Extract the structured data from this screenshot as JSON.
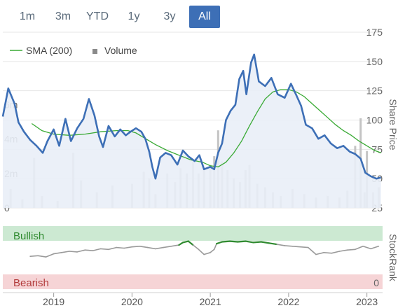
{
  "range_tabs": [
    {
      "label": "1m",
      "active": false
    },
    {
      "label": "3m",
      "active": false
    },
    {
      "label": "YTD",
      "active": false
    },
    {
      "label": "1y",
      "active": false
    },
    {
      "label": "3y",
      "active": false
    },
    {
      "label": "All",
      "active": true
    }
  ],
  "colors": {
    "price": "#3d6fb6",
    "price_fill": "#e9eef7",
    "sma": "#3aaa35",
    "volume": "#c4c4c4",
    "bullish_band": "#cce9d2",
    "bearish_band": "#f6d4d6",
    "rank_line": "#9a9a9a",
    "rank_bullish": "#2f8a2f",
    "accent": "#3d6fb6"
  },
  "chart_data": [
    {
      "type": "line",
      "legend": [
        {
          "name": "SMA (200)",
          "icon": "line"
        },
        {
          "name": "Volume",
          "icon": "square"
        }
      ],
      "ylabel": "Share Price",
      "price_axis": {
        "range": [
          25,
          175
        ],
        "ticks": [
          "175",
          "150",
          "125",
          "100",
          "75",
          "50",
          "25"
        ]
      },
      "volume_axis": {
        "range": [
          0,
          8000000
        ],
        "ticks": [
          "6m",
          "4m",
          "2m",
          "0"
        ]
      },
      "x_ticks": [
        "2019",
        "2020",
        "2021",
        "2022",
        "2023"
      ],
      "x_range": [
        2018.35,
        2023.2
      ],
      "series": [
        {
          "name": "Share Price",
          "points": [
            [
              2018.35,
              103
            ],
            [
              2018.42,
              127
            ],
            [
              2018.5,
              114
            ],
            [
              2018.55,
              98
            ],
            [
              2018.62,
              90
            ],
            [
              2018.7,
              83
            ],
            [
              2018.78,
              78
            ],
            [
              2018.86,
              72
            ],
            [
              2018.92,
              82
            ],
            [
              2019.0,
              92
            ],
            [
              2019.07,
              78
            ],
            [
              2019.15,
              101
            ],
            [
              2019.22,
              82
            ],
            [
              2019.3,
              93
            ],
            [
              2019.38,
              101
            ],
            [
              2019.45,
              118
            ],
            [
              2019.52,
              104
            ],
            [
              2019.58,
              86
            ],
            [
              2019.63,
              77
            ],
            [
              2019.7,
              95
            ],
            [
              2019.78,
              86
            ],
            [
              2019.85,
              92
            ],
            [
              2019.92,
              87
            ],
            [
              2019.98,
              90
            ],
            [
              2020.05,
              93
            ],
            [
              2020.12,
              90
            ],
            [
              2020.17,
              84
            ],
            [
              2020.22,
              73
            ],
            [
              2020.26,
              60
            ],
            [
              2020.3,
              50
            ],
            [
              2020.36,
              68
            ],
            [
              2020.43,
              72
            ],
            [
              2020.5,
              70
            ],
            [
              2020.58,
              62
            ],
            [
              2020.65,
              74
            ],
            [
              2020.72,
              69
            ],
            [
              2020.8,
              65
            ],
            [
              2020.86,
              70
            ],
            [
              2020.92,
              58
            ],
            [
              2021.0,
              60
            ],
            [
              2021.05,
              58
            ],
            [
              2021.1,
              72
            ],
            [
              2021.15,
              80
            ],
            [
              2021.2,
              100
            ],
            [
              2021.26,
              108
            ],
            [
              2021.32,
              113
            ],
            [
              2021.37,
              135
            ],
            [
              2021.42,
              142
            ],
            [
              2021.46,
              122
            ],
            [
              2021.52,
              149
            ],
            [
              2021.56,
              156
            ],
            [
              2021.62,
              133
            ],
            [
              2021.7,
              129
            ],
            [
              2021.78,
              136
            ],
            [
              2021.86,
              122
            ],
            [
              2021.95,
              119
            ],
            [
              2022.03,
              131
            ],
            [
              2022.1,
              121
            ],
            [
              2022.16,
              112
            ],
            [
              2022.22,
              96
            ],
            [
              2022.3,
              93
            ],
            [
              2022.38,
              84
            ],
            [
              2022.46,
              87
            ],
            [
              2022.54,
              80
            ],
            [
              2022.62,
              76
            ],
            [
              2022.7,
              78
            ],
            [
              2022.78,
              73
            ],
            [
              2022.85,
              71
            ],
            [
              2022.92,
              67
            ],
            [
              2022.98,
              55
            ],
            [
              2023.05,
              52
            ],
            [
              2023.12,
              50
            ],
            [
              2023.18,
              51
            ]
          ]
        },
        {
          "name": "SMA (200)",
          "points": [
            [
              2018.72,
              97
            ],
            [
              2018.85,
              91
            ],
            [
              2019.0,
              88
            ],
            [
              2019.2,
              87
            ],
            [
              2019.4,
              88
            ],
            [
              2019.6,
              90
            ],
            [
              2019.8,
              91
            ],
            [
              2019.95,
              91
            ],
            [
              2020.05,
              89
            ],
            [
              2020.15,
              85
            ],
            [
              2020.3,
              79
            ],
            [
              2020.45,
              74
            ],
            [
              2020.6,
              70
            ],
            [
              2020.75,
              66
            ],
            [
              2020.9,
              64
            ],
            [
              2021.0,
              61
            ],
            [
              2021.1,
              60
            ],
            [
              2021.2,
              64
            ],
            [
              2021.3,
              72
            ],
            [
              2021.4,
              82
            ],
            [
              2021.5,
              95
            ],
            [
              2021.6,
              107
            ],
            [
              2021.7,
              118
            ],
            [
              2021.8,
              124
            ],
            [
              2021.9,
              126
            ],
            [
              2022.0,
              126
            ],
            [
              2022.1,
              124
            ],
            [
              2022.2,
              120
            ],
            [
              2022.3,
              114
            ],
            [
              2022.4,
              108
            ],
            [
              2022.5,
              102
            ],
            [
              2022.6,
              96
            ],
            [
              2022.7,
              91
            ],
            [
              2022.8,
              87
            ],
            [
              2022.9,
              82
            ],
            [
              2023.0,
              78
            ],
            [
              2023.1,
              74
            ],
            [
              2023.18,
              72
            ]
          ]
        },
        {
          "name": "Volume",
          "points": [
            [
              2018.45,
              1100000
            ],
            [
              2018.6,
              500000
            ],
            [
              2018.75,
              2900000
            ],
            [
              2018.85,
              700000
            ],
            [
              2019.05,
              400000
            ],
            [
              2019.25,
              3200000
            ],
            [
              2019.35,
              1600000
            ],
            [
              2019.55,
              900000
            ],
            [
              2019.75,
              1300000
            ],
            [
              2020.0,
              1400000
            ],
            [
              2020.15,
              2100000
            ],
            [
              2020.22,
              1700000
            ],
            [
              2020.3,
              800000
            ],
            [
              2020.45,
              2000000
            ],
            [
              2020.55,
              1500000
            ],
            [
              2020.62,
              2300000
            ],
            [
              2020.7,
              2000000
            ],
            [
              2020.78,
              2700000
            ],
            [
              2020.85,
              2000000
            ],
            [
              2020.92,
              2200000
            ],
            [
              2021.0,
              2500000
            ],
            [
              2021.05,
              3000000
            ],
            [
              2021.1,
              4500000
            ],
            [
              2021.15,
              2700000
            ],
            [
              2021.22,
              2200000
            ],
            [
              2021.3,
              1700000
            ],
            [
              2021.38,
              1500000
            ],
            [
              2021.45,
              2200000
            ],
            [
              2021.5,
              2500000
            ],
            [
              2021.6,
              1400000
            ],
            [
              2021.7,
              1200000
            ],
            [
              2021.8,
              900000
            ],
            [
              2021.9,
              700000
            ],
            [
              2022.05,
              1100000
            ],
            [
              2022.2,
              800000
            ],
            [
              2022.35,
              600000
            ],
            [
              2022.5,
              700000
            ],
            [
              2022.65,
              600000
            ],
            [
              2022.75,
              1000000
            ],
            [
              2022.85,
              3600000
            ],
            [
              2022.92,
              5200000
            ],
            [
              2022.97,
              900000
            ],
            [
              2023.0,
              3300000
            ],
            [
              2023.08,
              900000
            ],
            [
              2023.15,
              1200000
            ]
          ]
        }
      ]
    },
    {
      "type": "line",
      "ylabel": "StockRank",
      "bands": [
        {
          "label": "Bullish",
          "range": [
            70,
            100
          ]
        },
        {
          "label": "Bearish",
          "range": [
            0,
            30
          ]
        }
      ],
      "y_ticks": [
        "0"
      ],
      "series": [
        {
          "name": "StockRank",
          "points": [
            [
              2018.7,
              52
            ],
            [
              2018.8,
              53
            ],
            [
              2018.9,
              51
            ],
            [
              2019.0,
              56
            ],
            [
              2019.1,
              58
            ],
            [
              2019.2,
              60
            ],
            [
              2019.3,
              59
            ],
            [
              2019.4,
              62
            ],
            [
              2019.5,
              61
            ],
            [
              2019.6,
              64
            ],
            [
              2019.7,
              63
            ],
            [
              2019.8,
              66
            ],
            [
              2019.9,
              65
            ],
            [
              2020.0,
              67
            ],
            [
              2020.1,
              68
            ],
            [
              2020.2,
              66
            ],
            [
              2020.3,
              64
            ],
            [
              2020.4,
              66
            ],
            [
              2020.5,
              68
            ],
            [
              2020.6,
              70
            ],
            [
              2020.65,
              74
            ],
            [
              2020.72,
              76
            ],
            [
              2020.78,
              70
            ],
            [
              2020.85,
              63
            ],
            [
              2020.92,
              55
            ],
            [
              2021.0,
              58
            ],
            [
              2021.05,
              63
            ],
            [
              2021.08,
              72
            ],
            [
              2021.15,
              75
            ],
            [
              2021.25,
              76
            ],
            [
              2021.35,
              75
            ],
            [
              2021.45,
              76
            ],
            [
              2021.55,
              74
            ],
            [
              2021.65,
              75
            ],
            [
              2021.75,
              73
            ],
            [
              2021.85,
              71
            ],
            [
              2021.95,
              69
            ],
            [
              2022.05,
              68
            ],
            [
              2022.15,
              67
            ],
            [
              2022.25,
              66
            ],
            [
              2022.35,
              55
            ],
            [
              2022.45,
              58
            ],
            [
              2022.55,
              57
            ],
            [
              2022.65,
              60
            ],
            [
              2022.75,
              62
            ],
            [
              2022.85,
              63
            ],
            [
              2022.95,
              68
            ],
            [
              2023.05,
              64
            ],
            [
              2023.15,
              68
            ]
          ]
        }
      ]
    }
  ]
}
